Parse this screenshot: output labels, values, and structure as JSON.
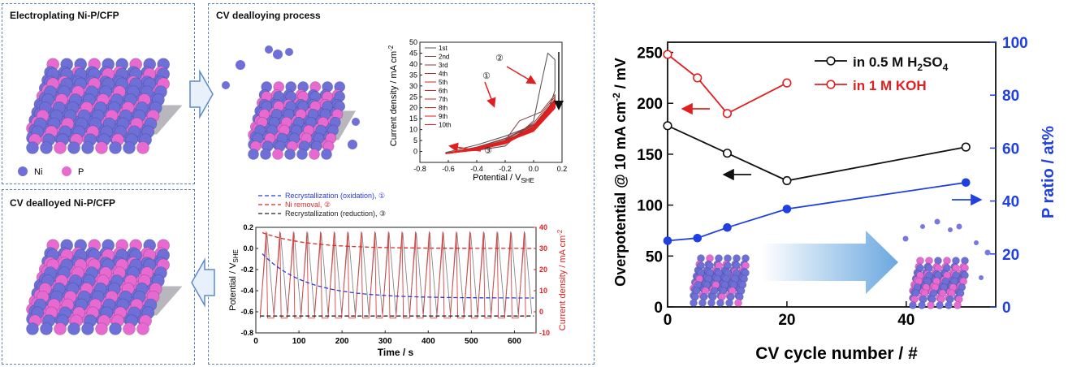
{
  "panels": {
    "electroplating_title": "Electroplating Ni-P/CFP",
    "dealloying_title": "CV dealloying process",
    "dealloyed_title": "CV dealloyed Ni-P/CFP",
    "legend_ni": "Ni",
    "legend_p": "P"
  },
  "colors": {
    "ni": "#6f6fd8",
    "p": "#e86ad0",
    "substrate": "#7a7a80",
    "arrow": "#5a9ad8"
  },
  "chart_data": [
    {
      "type": "line",
      "xlabel": "Potential / V",
      "xlabel_sub": "SHE",
      "ylabel": "Current density / mA cm",
      "ylabel_sup": "-2",
      "xlim": [
        -0.8,
        0.2
      ],
      "ylim": [
        -5,
        50
      ],
      "x_ticks": [
        "-0.8",
        "-0.6",
        "-0.4",
        "-0.2",
        "0.0",
        "0.2"
      ],
      "y_ticks": [
        "0",
        "5",
        "10",
        "15",
        "20",
        "25",
        "30",
        "35",
        "40",
        "45",
        "50"
      ],
      "legend": [
        "1st",
        "2nd",
        "3rd",
        "4th",
        "5th",
        "6th",
        "7th",
        "8th",
        "9th",
        "10th"
      ],
      "annotations": [
        "①",
        "②",
        "③"
      ],
      "series": [
        {
          "name": "1st",
          "color": "#5a5a5a",
          "peak": 45,
          "points": [
            [
              -0.62,
              -0.5
            ],
            [
              -0.4,
              0.5
            ],
            [
              -0.2,
              2.5
            ],
            [
              0.0,
              14
            ],
            [
              0.05,
              30
            ],
            [
              0.1,
              45
            ],
            [
              0.15,
              42
            ],
            [
              0.15,
              28
            ],
            [
              0.1,
              18
            ],
            [
              0.0,
              12
            ],
            [
              -0.2,
              7
            ],
            [
              -0.4,
              3
            ],
            [
              -0.62,
              -0.5
            ]
          ]
        },
        {
          "name": "2nd",
          "color": "#7a4a4a",
          "points": [
            [
              -0.62,
              -0.8
            ],
            [
              -0.4,
              1
            ],
            [
              -0.2,
              5
            ],
            [
              -0.1,
              14
            ],
            [
              0.05,
              18
            ],
            [
              0.15,
              26
            ],
            [
              0.15,
              24
            ],
            [
              0.05,
              14
            ],
            [
              -0.2,
              6
            ],
            [
              -0.4,
              2
            ],
            [
              -0.62,
              -0.8
            ]
          ]
        },
        {
          "name": "3rd",
          "color": "#9a3a3a",
          "points": [
            [
              -0.62,
              -1
            ],
            [
              -0.4,
              1
            ],
            [
              -0.2,
              5
            ],
            [
              0.0,
              13
            ],
            [
              0.15,
              25
            ],
            [
              0.15,
              23
            ],
            [
              0.0,
              12
            ],
            [
              -0.2,
              5.5
            ],
            [
              -0.4,
              2
            ],
            [
              -0.62,
              -1
            ]
          ]
        },
        {
          "name": "4th",
          "color": "#b03030",
          "points": [
            [
              -0.62,
              -1
            ],
            [
              -0.4,
              1
            ],
            [
              -0.2,
              4.5
            ],
            [
              0.0,
              12
            ],
            [
              0.15,
              24
            ],
            [
              0.15,
              22
            ],
            [
              0.0,
              11
            ],
            [
              -0.2,
              5
            ],
            [
              -0.4,
              1.8
            ],
            [
              -0.62,
              -1
            ]
          ]
        },
        {
          "name": "5th",
          "color": "#c02828",
          "points": [
            [
              -0.62,
              -1
            ],
            [
              -0.4,
              0.9
            ],
            [
              -0.2,
              4.2
            ],
            [
              0.0,
              11.5
            ],
            [
              0.15,
              23.5
            ],
            [
              0.15,
              21.5
            ],
            [
              0.0,
              10.5
            ],
            [
              -0.2,
              4.8
            ],
            [
              -0.4,
              1.7
            ],
            [
              -0.62,
              -1
            ]
          ]
        },
        {
          "name": "6th",
          "color": "#cc2424",
          "points": [
            [
              -0.62,
              -1
            ],
            [
              -0.4,
              0.9
            ],
            [
              -0.2,
              4
            ],
            [
              0.0,
              11
            ],
            [
              0.15,
              23
            ],
            [
              0.15,
              21
            ],
            [
              0.0,
              10
            ],
            [
              -0.2,
              4.6
            ],
            [
              -0.4,
              1.6
            ],
            [
              -0.62,
              -1
            ]
          ]
        },
        {
          "name": "7th",
          "color": "#d62222",
          "points": [
            [
              -0.62,
              -1
            ],
            [
              -0.4,
              0.8
            ],
            [
              -0.2,
              3.8
            ],
            [
              0.0,
              10.8
            ],
            [
              0.15,
              22.5
            ],
            [
              0.15,
              20.5
            ],
            [
              0.0,
              9.8
            ],
            [
              -0.2,
              4.5
            ],
            [
              -0.4,
              1.5
            ],
            [
              -0.62,
              -1
            ]
          ]
        },
        {
          "name": "8th",
          "color": "#de2020",
          "points": [
            [
              -0.62,
              -1
            ],
            [
              -0.4,
              0.8
            ],
            [
              -0.2,
              3.7
            ],
            [
              0.0,
              10.6
            ],
            [
              0.15,
              22.2
            ],
            [
              0.15,
              20.2
            ],
            [
              0.0,
              9.6
            ],
            [
              -0.2,
              4.4
            ],
            [
              -0.4,
              1.5
            ],
            [
              -0.62,
              -1
            ]
          ]
        },
        {
          "name": "9th",
          "color": "#e61e1e",
          "points": [
            [
              -0.62,
              -1
            ],
            [
              -0.4,
              0.8
            ],
            [
              -0.2,
              3.6
            ],
            [
              0.0,
              10.4
            ],
            [
              0.15,
              22
            ],
            [
              0.15,
              20
            ],
            [
              0.0,
              9.4
            ],
            [
              -0.2,
              4.3
            ],
            [
              -0.4,
              1.4
            ],
            [
              -0.62,
              -1
            ]
          ]
        },
        {
          "name": "10th",
          "color": "#ee1c1c",
          "points": [
            [
              -0.62,
              -1
            ],
            [
              -0.4,
              0.7
            ],
            [
              -0.2,
              3.5
            ],
            [
              0.0,
              10.2
            ],
            [
              0.15,
              21.8
            ],
            [
              0.15,
              19.8
            ],
            [
              0.0,
              9.2
            ],
            [
              -0.2,
              4.2
            ],
            [
              -0.4,
              1.4
            ],
            [
              -0.62,
              -1
            ]
          ]
        }
      ]
    },
    {
      "type": "line",
      "xlabel": "Time / s",
      "ylabel_left": "Potential / V",
      "ylabel_left_sub": "SHE",
      "ylabel_right": "Current density / mA cm",
      "ylabel_right_sup": "-2",
      "xlim": [
        0,
        650
      ],
      "ylim_left": [
        -0.8,
        0.2
      ],
      "ylim_right": [
        -10,
        40
      ],
      "x_ticks": [
        "0",
        "100",
        "200",
        "300",
        "400",
        "500",
        "600"
      ],
      "y_left_ticks": [
        "-0.8",
        "-0.6",
        "-0.4",
        "-0.2",
        "0.0",
        "0.2"
      ],
      "y_right_ticks": [
        "-10",
        "0",
        "10",
        "20",
        "30",
        "40"
      ],
      "legend": [
        {
          "name": "Recrystallization (oxidation), ①",
          "color": "#2a3adc"
        },
        {
          "name": "Ni removal, ②",
          "color": "#dc2a2a"
        },
        {
          "name": "Recrystallization (reduction), ③",
          "color": "#222222"
        }
      ],
      "cycles": 20,
      "potential_range": [
        -0.62,
        0.15
      ],
      "current_peak_start": 38,
      "current_peak_end": 38,
      "trend_oxidation": {
        "start": -0.05,
        "end": -0.47,
        "tau_s": 100
      },
      "trend_removal": {
        "start": 0.15,
        "end": 0.0,
        "tau_s": 100
      },
      "trend_reduction": -0.64
    },
    {
      "type": "line",
      "xlabel": "CV cycle number / #",
      "ylabel_left": "Overpotential @ 10 mA cm",
      "ylabel_left_sup": "-2",
      "ylabel_left_tail": " / mV",
      "ylabel_right": "P ratio / at%",
      "xlim": [
        0,
        55
      ],
      "ylim_left": [
        0,
        260
      ],
      "ylim_right": [
        0,
        100
      ],
      "x_ticks": [
        "0",
        "20",
        "40"
      ],
      "y_left_ticks": [
        "0",
        "50",
        "100",
        "150",
        "200",
        "250"
      ],
      "y_right_ticks": [
        "0",
        "20",
        "40",
        "60",
        "80",
        "100"
      ],
      "series": [
        {
          "name": "in 0.5 M H2SO4",
          "label": "in 0.5 M H",
          "label_sub": "2",
          "label_tail": "SO",
          "label_sub2": "4",
          "color": "#111111",
          "axis": "left",
          "x": [
            0,
            10,
            20,
            50
          ],
          "y": [
            178,
            151,
            124,
            157
          ]
        },
        {
          "name": "in 1 M KOH",
          "label": "in 1 M KOH",
          "color": "#e02020",
          "axis": "left",
          "x": [
            0,
            5,
            10,
            20
          ],
          "y": [
            248,
            225,
            190,
            220
          ]
        },
        {
          "name": "P ratio",
          "color": "#2040e0",
          "axis": "right",
          "marker": "filled",
          "x": [
            0,
            5,
            10,
            20,
            50
          ],
          "y": [
            25,
            26,
            30,
            37,
            47
          ]
        }
      ]
    }
  ]
}
